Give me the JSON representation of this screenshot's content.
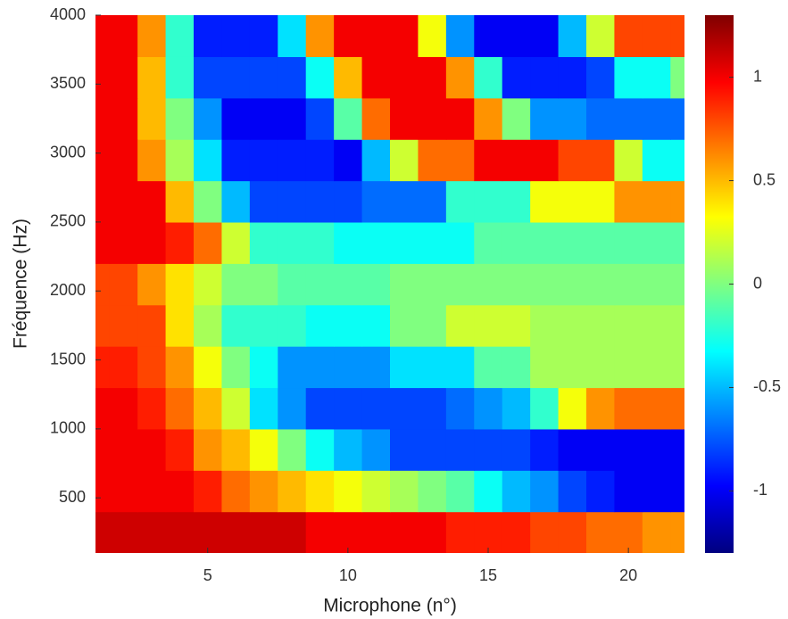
{
  "chart_data": {
    "type": "heatmap",
    "xlabel": "Microphone (n°)",
    "ylabel": "Fréquence (Hz)",
    "x": [
      1,
      2,
      3,
      4,
      5,
      6,
      7,
      8,
      9,
      10,
      11,
      12,
      13,
      14,
      15,
      16,
      17,
      18,
      19,
      20,
      21,
      22
    ],
    "y": [
      250,
      550,
      850,
      1150,
      1450,
      1750,
      2050,
      2350,
      2650,
      2950,
      3250,
      3550,
      3850
    ],
    "z": [
      [
        1.1,
        1.1,
        1.1,
        1.1,
        1.1,
        1.1,
        1.1,
        1.1,
        1.0,
        1.0,
        1.0,
        1.0,
        1.0,
        0.9,
        0.9,
        0.9,
        0.8,
        0.8,
        0.7,
        0.7,
        0.6,
        0.6
      ],
      [
        1.0,
        1.0,
        1.0,
        1.0,
        0.9,
        0.7,
        0.6,
        0.5,
        0.4,
        0.3,
        0.2,
        0.1,
        0.0,
        -0.1,
        -0.3,
        -0.5,
        -0.6,
        -0.8,
        -0.9,
        -1.0,
        -1.0,
        -1.0
      ],
      [
        1.0,
        1.0,
        1.0,
        0.9,
        0.6,
        0.5,
        0.3,
        0.0,
        -0.3,
        -0.5,
        -0.6,
        -0.8,
        -0.8,
        -0.8,
        -0.8,
        -0.8,
        -0.9,
        -1.0,
        -1.0,
        -1.0,
        -1.0,
        -1.0
      ],
      [
        1.0,
        1.0,
        0.9,
        0.7,
        0.5,
        0.2,
        -0.4,
        -0.6,
        -0.8,
        -0.8,
        -0.8,
        -0.8,
        -0.8,
        -0.7,
        -0.6,
        -0.5,
        -0.2,
        0.3,
        0.6,
        0.7,
        0.7,
        0.7
      ],
      [
        0.9,
        0.9,
        0.8,
        0.6,
        0.3,
        0.0,
        -0.3,
        -0.6,
        -0.6,
        -0.6,
        -0.6,
        -0.4,
        -0.4,
        -0.4,
        -0.1,
        -0.1,
        0.1,
        0.1,
        0.1,
        0.1,
        0.1,
        0.1
      ],
      [
        0.8,
        0.8,
        0.8,
        0.4,
        0.1,
        -0.2,
        -0.2,
        -0.2,
        -0.3,
        -0.3,
        -0.3,
        0.0,
        0.0,
        0.2,
        0.2,
        0.2,
        0.1,
        0.1,
        0.1,
        0.1,
        0.1,
        0.1
      ],
      [
        0.8,
        0.8,
        0.6,
        0.4,
        0.2,
        0.0,
        0.0,
        -0.1,
        -0.1,
        -0.1,
        -0.1,
        0.0,
        0.0,
        0.0,
        0.0,
        0.0,
        0.0,
        0.0,
        0.0,
        0.0,
        0.0,
        0.0
      ],
      [
        1.0,
        1.0,
        1.0,
        0.9,
        0.7,
        0.2,
        -0.2,
        -0.2,
        -0.2,
        -0.3,
        -0.3,
        -0.3,
        -0.3,
        -0.3,
        -0.1,
        -0.1,
        -0.1,
        -0.1,
        -0.1,
        -0.1,
        -0.1,
        -0.1
      ],
      [
        1.0,
        1.0,
        1.0,
        0.5,
        0.0,
        -0.5,
        -0.8,
        -0.8,
        -0.8,
        -0.8,
        -0.7,
        -0.7,
        -0.7,
        -0.2,
        -0.2,
        -0.2,
        0.3,
        0.3,
        0.3,
        0.6,
        0.6,
        0.6
      ],
      [
        1.0,
        1.0,
        0.6,
        0.1,
        -0.4,
        -0.9,
        -0.9,
        -0.9,
        -0.9,
        -1.0,
        -0.5,
        0.2,
        0.7,
        0.7,
        1.0,
        1.0,
        1.0,
        0.8,
        0.8,
        0.2,
        -0.3,
        -0.3
      ],
      [
        1.0,
        1.0,
        0.5,
        0.0,
        -0.6,
        -1.0,
        -1.0,
        -1.0,
        -0.8,
        -0.1,
        0.7,
        1.0,
        1.0,
        1.0,
        0.6,
        0.0,
        -0.6,
        -0.6,
        -0.7,
        -0.7,
        -0.7,
        -0.7
      ],
      [
        1.0,
        1.0,
        0.5,
        -0.2,
        -0.8,
        -0.8,
        -0.8,
        -0.8,
        -0.3,
        0.5,
        1.0,
        1.0,
        1.0,
        0.6,
        -0.2,
        -0.9,
        -0.9,
        -0.9,
        -0.8,
        -0.3,
        -0.3,
        0.0
      ],
      [
        1.0,
        1.0,
        0.6,
        -0.2,
        -0.9,
        -0.9,
        -0.9,
        -0.4,
        0.6,
        1.0,
        1.0,
        1.0,
        0.3,
        -0.6,
        -1.0,
        -1.0,
        -1.0,
        -0.5,
        0.2,
        0.8,
        0.8,
        0.8
      ]
    ],
    "xlim": [
      1,
      22
    ],
    "xticks": [
      5,
      10,
      15,
      20
    ],
    "ylim": [
      100,
      4000
    ],
    "yticks": [
      500,
      1000,
      1500,
      2000,
      2500,
      3000,
      3500,
      4000
    ],
    "colormap": "jet",
    "clim": [
      -1.3,
      1.3
    ],
    "cticks": [
      -1,
      -0.5,
      0,
      0.5,
      1
    ]
  }
}
